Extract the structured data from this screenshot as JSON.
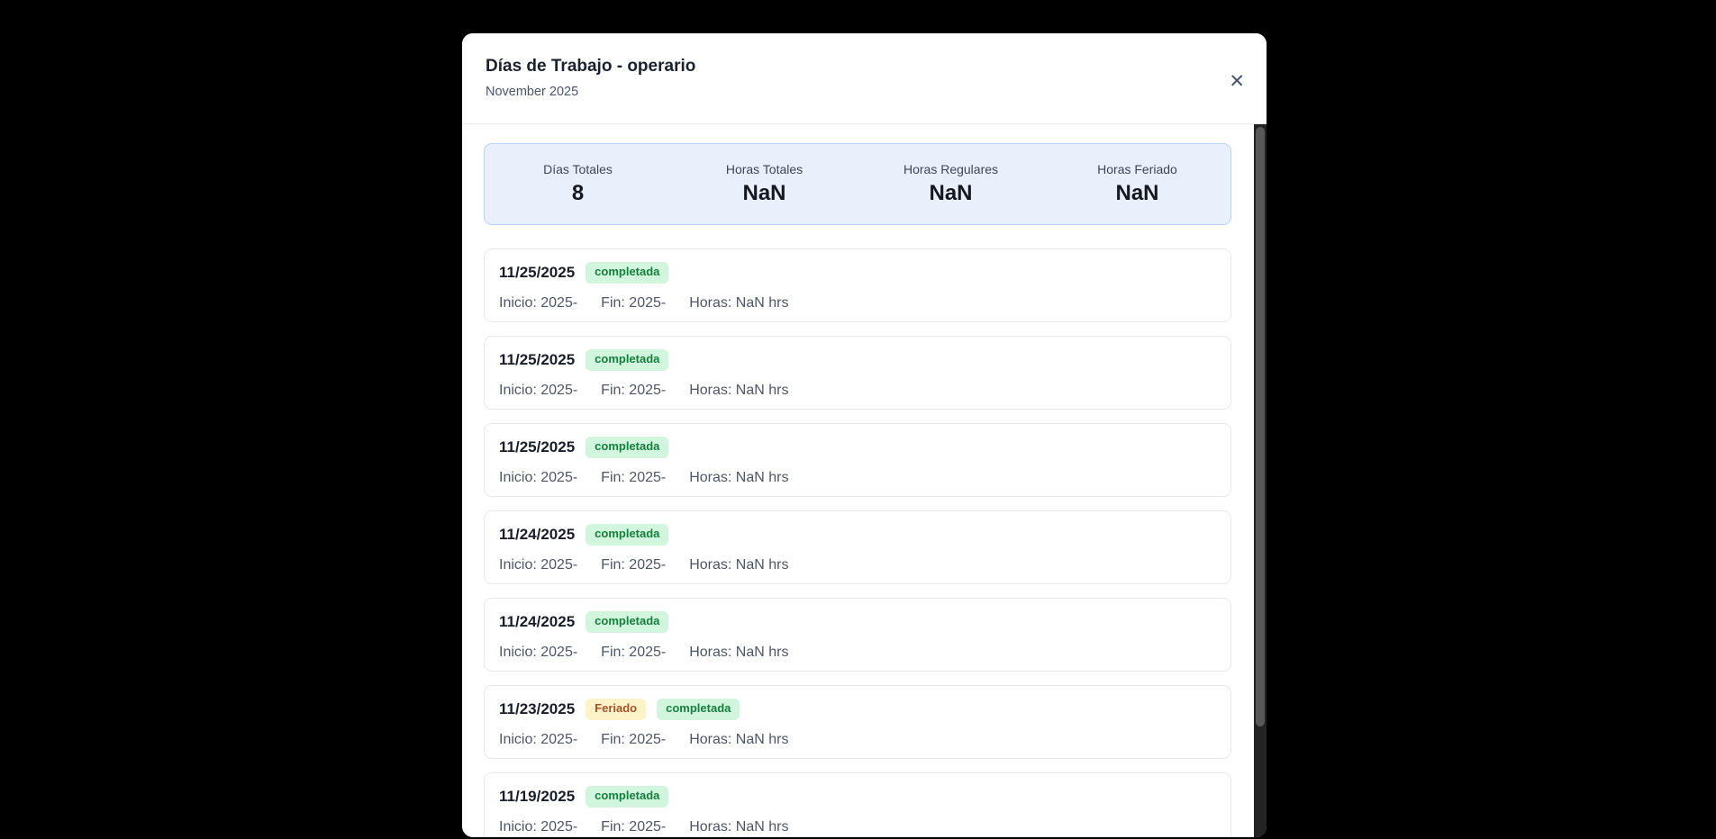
{
  "page": {
    "background_color": "#000000"
  },
  "modal": {
    "title": "Días de Trabajo - operario",
    "subtitle": "November 2025",
    "close_icon": "✕"
  },
  "summary": {
    "background_color": "#e9f0fb",
    "border_color": "#b7d5f6",
    "items": [
      {
        "label": "Días Totales",
        "value": "8"
      },
      {
        "label": "Horas Totales",
        "value": "NaN"
      },
      {
        "label": "Horas Regulares",
        "value": "NaN"
      },
      {
        "label": "Horas Feriado",
        "value": "NaN"
      }
    ]
  },
  "badge_styles": {
    "completada": {
      "bg": "#d2f5de",
      "text": "#15803d"
    },
    "feriado": {
      "bg": "#fdf3c9",
      "text": "#a4532a"
    }
  },
  "workdays": [
    {
      "date": "11/25/2025",
      "badges": [
        {
          "label": "completada",
          "type": "completada"
        }
      ],
      "details": [
        "Inicio: 2025-",
        "Fin: 2025-",
        "Horas: NaN hrs"
      ]
    },
    {
      "date": "11/25/2025",
      "badges": [
        {
          "label": "completada",
          "type": "completada"
        }
      ],
      "details": [
        "Inicio: 2025-",
        "Fin: 2025-",
        "Horas: NaN hrs"
      ]
    },
    {
      "date": "11/25/2025",
      "badges": [
        {
          "label": "completada",
          "type": "completada"
        }
      ],
      "details": [
        "Inicio: 2025-",
        "Fin: 2025-",
        "Horas: NaN hrs"
      ]
    },
    {
      "date": "11/24/2025",
      "badges": [
        {
          "label": "completada",
          "type": "completada"
        }
      ],
      "details": [
        "Inicio: 2025-",
        "Fin: 2025-",
        "Horas: NaN hrs"
      ]
    },
    {
      "date": "11/24/2025",
      "badges": [
        {
          "label": "completada",
          "type": "completada"
        }
      ],
      "details": [
        "Inicio: 2025-",
        "Fin: 2025-",
        "Horas: NaN hrs"
      ]
    },
    {
      "date": "11/23/2025",
      "badges": [
        {
          "label": "Feriado",
          "type": "feriado"
        },
        {
          "label": "completada",
          "type": "completada"
        }
      ],
      "details": [
        "Inicio: 2025-",
        "Fin: 2025-",
        "Horas: NaN hrs"
      ]
    },
    {
      "date": "11/19/2025",
      "badges": [
        {
          "label": "completada",
          "type": "completada"
        }
      ],
      "details": [
        "Inicio: 2025-",
        "Fin: 2025-",
        "Horas: NaN hrs"
      ]
    }
  ]
}
